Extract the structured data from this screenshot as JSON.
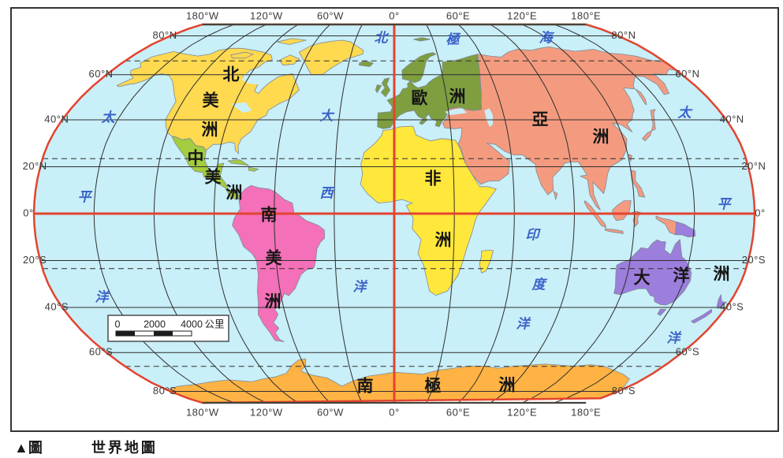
{
  "figure": {
    "marker": "▲圖",
    "title": "世界地圖"
  },
  "map": {
    "axis": {
      "top": [
        "180°W",
        "120°W",
        "60°W",
        "0°",
        "60°E",
        "120°E",
        "180°E"
      ],
      "bottom": [
        "180°W",
        "120°W",
        "60°W",
        "0°",
        "60°E",
        "120°E",
        "180°E"
      ],
      "left": [
        "80°N",
        "60°N",
        "40°N",
        "20°N",
        "0°",
        "20°S",
        "40°S",
        "60°S",
        "80°S"
      ],
      "right": [
        "80°N",
        "60°N",
        "40°N",
        "20°N",
        "0°",
        "20°S",
        "40°S",
        "60°S",
        "80°S"
      ]
    },
    "continents": [
      {
        "id": "north-america",
        "label": "北美洲",
        "color": "#FFD950"
      },
      {
        "id": "central-america",
        "label": "中美洲",
        "color": "#A3CC3E"
      },
      {
        "id": "south-america",
        "label": "南美洲",
        "color": "#F470B8"
      },
      {
        "id": "europe",
        "label": "歐洲",
        "color": "#7E9E40"
      },
      {
        "id": "asia",
        "label": "亞洲",
        "color": "#F49B7F"
      },
      {
        "id": "africa",
        "label": "非洲",
        "color": "#FFE73B"
      },
      {
        "id": "oceania",
        "label": "大洋洲",
        "color": "#9C7EDC"
      },
      {
        "id": "antarctica",
        "label": "南極洲",
        "color": "#FFB344"
      }
    ],
    "oceans": [
      {
        "id": "arctic",
        "label": "北極海"
      },
      {
        "id": "pacific-west",
        "label": "太平洋"
      },
      {
        "id": "atlantic",
        "label": "大西洋"
      },
      {
        "id": "indian",
        "label": "印度洋"
      },
      {
        "id": "pacific-east",
        "label": "太平洋"
      }
    ],
    "colors": {
      "ocean": "#C9EFF8",
      "graticule": "#2F2F2F",
      "red_line": "#E2442F",
      "pole_line": "#45443C",
      "ocean_label": "#3B62C8",
      "land_stroke": "#7D8A96",
      "frame": "#333333"
    },
    "scale_bar": {
      "ticks": [
        "0",
        "2000",
        "4000"
      ],
      "unit": "公里"
    }
  }
}
